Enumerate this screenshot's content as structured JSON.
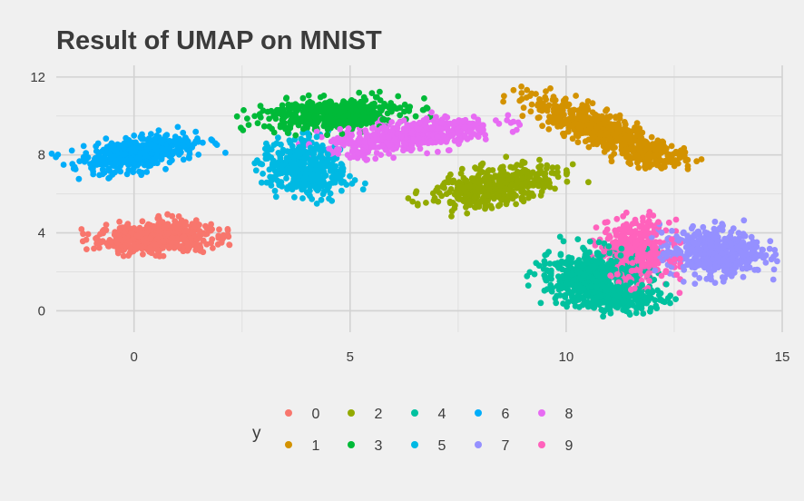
{
  "chart_data": {
    "type": "scatter",
    "title": "Result of UMAP on MNIST",
    "xlabel": "",
    "ylabel": "",
    "xlim": [
      -1.8,
      15
    ],
    "ylim": [
      -1.1,
      12.6
    ],
    "x_ticks": [
      0,
      5,
      10,
      15
    ],
    "y_ticks": [
      0,
      4,
      8,
      12
    ],
    "grid": true,
    "legend": {
      "title": "y",
      "position": "bottom",
      "entries": [
        "0",
        "1",
        "2",
        "3",
        "4",
        "5",
        "6",
        "7",
        "8",
        "9"
      ]
    },
    "series": [
      {
        "name": "0",
        "color": "#F8766D",
        "clusters": [
          {
            "cx": 0.5,
            "cy": 3.7,
            "sx": 0.65,
            "sy": 0.35,
            "n": 520,
            "tilt": 0.05
          },
          {
            "cx": 1.0,
            "cy": 4.2,
            "sx": 0.3,
            "sy": 0.35,
            "n": 80,
            "tilt": 0.0
          }
        ]
      },
      {
        "name": "1",
        "color": "#D39200",
        "clusters": [
          {
            "cx": 10.8,
            "cy": 9.3,
            "sx": 1.1,
            "sy": 0.32,
            "n": 560,
            "tilt": -0.78
          },
          {
            "cx": 12.0,
            "cy": 7.9,
            "sx": 0.4,
            "sy": 0.25,
            "n": 90,
            "tilt": -0.3
          }
        ]
      },
      {
        "name": "2",
        "color": "#93AA00",
        "clusters": [
          {
            "cx": 8.4,
            "cy": 6.4,
            "sx": 0.8,
            "sy": 0.45,
            "n": 420,
            "tilt": 0.55
          }
        ]
      },
      {
        "name": "3",
        "color": "#00BA38",
        "clusters": [
          {
            "cx": 4.6,
            "cy": 10.1,
            "sx": 0.85,
            "sy": 0.4,
            "n": 460,
            "tilt": 0.15
          }
        ]
      },
      {
        "name": "4",
        "color": "#00C19F",
        "clusters": [
          {
            "cx": 10.6,
            "cy": 1.8,
            "sx": 0.55,
            "sy": 0.65,
            "n": 520,
            "tilt": -0.3
          },
          {
            "cx": 11.3,
            "cy": 0.6,
            "sx": 0.5,
            "sy": 0.35,
            "n": 160,
            "tilt": 0.0
          }
        ]
      },
      {
        "name": "5",
        "color": "#00B9E3",
        "clusters": [
          {
            "cx": 4.0,
            "cy": 7.3,
            "sx": 0.45,
            "sy": 0.75,
            "n": 420,
            "tilt": 0.2
          }
        ]
      },
      {
        "name": "6",
        "color": "#00ADFA",
        "clusters": [
          {
            "cx": 0.1,
            "cy": 8.1,
            "sx": 0.7,
            "sy": 0.4,
            "n": 440,
            "tilt": 0.45
          }
        ]
      },
      {
        "name": "7",
        "color": "#9590FF",
        "clusters": [
          {
            "cx": 13.4,
            "cy": 3.0,
            "sx": 0.55,
            "sy": 0.6,
            "n": 500,
            "tilt": 0.1
          }
        ]
      },
      {
        "name": "8",
        "color": "#E76BF3",
        "clusters": [
          {
            "cx": 6.4,
            "cy": 9.0,
            "sx": 1.0,
            "sy": 0.38,
            "n": 480,
            "tilt": 0.3
          }
        ]
      },
      {
        "name": "9",
        "color": "#FF62BC",
        "clusters": [
          {
            "cx": 11.6,
            "cy": 3.0,
            "sx": 0.4,
            "sy": 0.8,
            "n": 420,
            "tilt": 0.0
          }
        ]
      }
    ]
  }
}
